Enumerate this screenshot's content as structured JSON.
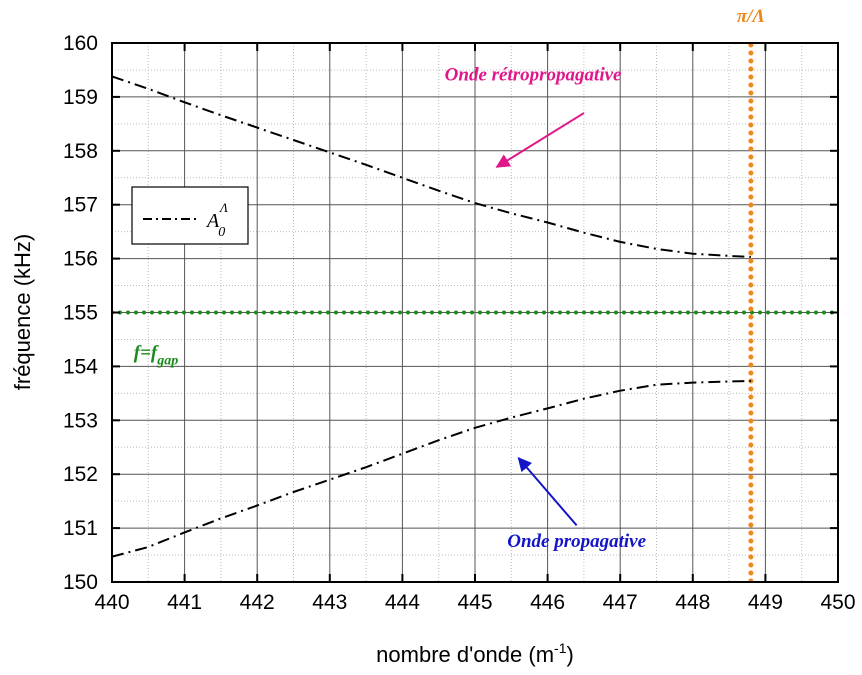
{
  "chart_data": {
    "type": "line",
    "xlabel_base": "nombre d'onde (m",
    "xlabel_sup": "-1",
    "xlabel_end": ")",
    "ylabel": "fréquence (kHz)",
    "xlim": [
      440,
      450
    ],
    "ylim": [
      150,
      160
    ],
    "xticks": [
      "440",
      "441",
      "442",
      "443",
      "444",
      "445",
      "446",
      "447",
      "448",
      "449",
      "450"
    ],
    "yticks": [
      "150",
      "151",
      "152",
      "153",
      "154",
      "155",
      "156",
      "157",
      "158",
      "159",
      "160"
    ],
    "grid": true,
    "legend": {
      "placement": "upper-left",
      "label_main": "A",
      "label_sub": "0",
      "label_sup": "Λ"
    },
    "series": [
      {
        "name": "A0Λ",
        "style": "dash-dot",
        "color": "#000000",
        "branches": [
          {
            "x": [
              440.0,
              440.5,
              441.0,
              441.5,
              442.0,
              442.5,
              443.0,
              443.5,
              444.0,
              444.5,
              445.0,
              445.5,
              446.0,
              446.5,
              447.0,
              447.5,
              448.0,
              448.5,
              448.8
            ],
            "y": [
              159.38,
              159.15,
              158.9,
              158.66,
              158.43,
              158.2,
              157.97,
              157.74,
              157.5,
              157.26,
              157.03,
              156.84,
              156.67,
              156.48,
              156.31,
              156.18,
              156.09,
              156.05,
              156.03
            ]
          },
          {
            "x": [
              440.0,
              440.5,
              441.0,
              441.5,
              442.0,
              442.5,
              443.0,
              443.5,
              444.0,
              444.5,
              445.0,
              445.5,
              446.0,
              446.5,
              447.0,
              447.5,
              448.0,
              448.5,
              448.8
            ],
            "y": [
              150.47,
              150.65,
              150.92,
              151.18,
              151.42,
              151.67,
              151.9,
              152.13,
              152.38,
              152.63,
              152.86,
              153.05,
              153.22,
              153.4,
              153.55,
              153.66,
              153.7,
              153.72,
              153.73
            ]
          }
        ]
      }
    ],
    "reference_lines": [
      {
        "orientation": "horizontal",
        "value": 155,
        "color": "#1a8a1a",
        "style": "dotted"
      },
      {
        "orientation": "vertical",
        "value": 448.8,
        "color": "#f0851a",
        "style": "dotted"
      }
    ],
    "annotations": {
      "upper": {
        "text": "Onde rétropropagative",
        "color": "#e0178a",
        "x": 445.8,
        "y": 159.3,
        "arrow_from": [
          446.5,
          158.7
        ],
        "arrow_to": [
          445.3,
          157.7
        ]
      },
      "lower": {
        "text": "Onde propagative",
        "color": "#1515c8",
        "x": 446.4,
        "y": 150.65,
        "arrow_from": [
          446.4,
          151.05
        ],
        "arrow_to": [
          445.6,
          152.3
        ]
      },
      "gap": {
        "text_main": "f=f",
        "text_sub": "gap",
        "color": "#1a8a1a",
        "x": 440.3,
        "y": 154.15
      },
      "pi": {
        "text": "π/Λ",
        "color": "#f0851a",
        "x": 448.8,
        "y": 160.25
      }
    }
  }
}
